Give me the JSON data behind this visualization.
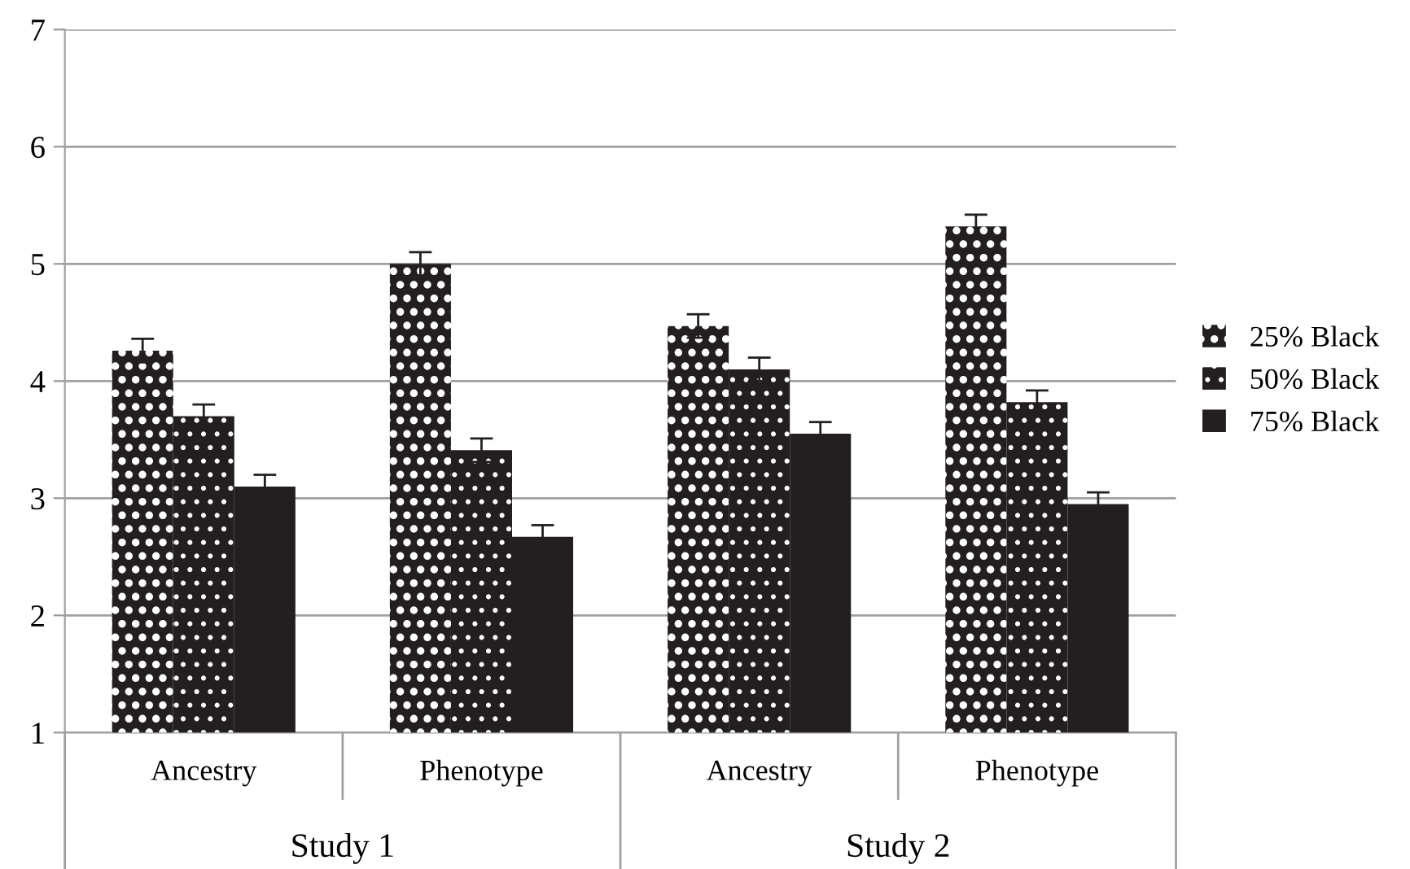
{
  "chart_data": {
    "type": "bar",
    "categories": [
      "Ancestry",
      "Phenotype",
      "Ancestry",
      "Phenotype"
    ],
    "annotations": [
      "Study 1",
      "Study 2"
    ],
    "series": [
      {
        "name": "25% Black",
        "color": "#231f20",
        "values": [
          4.26,
          5.0,
          4.47,
          5.32
        ],
        "errors": [
          0.1,
          0.1,
          0.1,
          0.1
        ]
      },
      {
        "name": "50% Black",
        "color": "#231f20",
        "values": [
          3.7,
          3.41,
          4.1,
          3.82
        ],
        "errors": [
          0.1,
          0.1,
          0.1,
          0.1
        ]
      },
      {
        "name": "75% Black",
        "color": "#231f20",
        "values": [
          3.1,
          2.67,
          3.55,
          2.95
        ],
        "errors": [
          0.1,
          0.1,
          0.1,
          0.1
        ]
      }
    ],
    "ylim": [
      1,
      7
    ],
    "yticks": [
      1,
      2,
      3,
      4,
      5,
      6,
      7
    ],
    "grid": "y",
    "legend": "right"
  }
}
